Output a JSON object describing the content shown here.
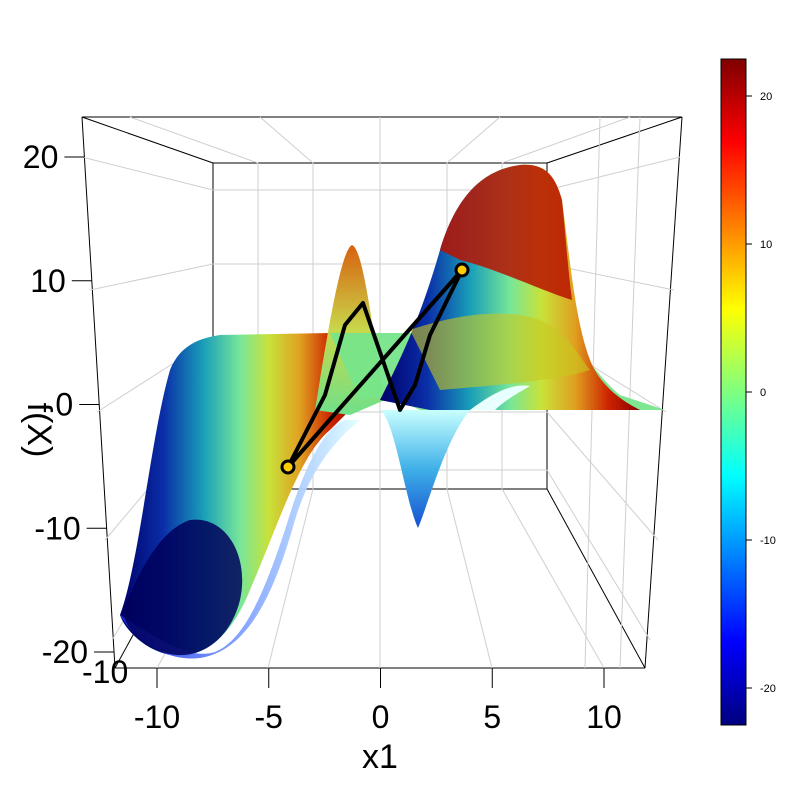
{
  "chart_data": {
    "type": "surface3d",
    "xlabel": "x1",
    "zlabel": "f(X)",
    "x_ticks": [
      "-10",
      "-5",
      "0",
      "5",
      "10"
    ],
    "x_tick_values": [
      -10,
      -5,
      0,
      5,
      10
    ],
    "z_ticks": [
      "20",
      "10",
      "0",
      "-10",
      "-20"
    ],
    "z_tick_values": [
      20,
      10,
      0,
      -10,
      -20
    ],
    "y_tick_visible": "-10",
    "xlim": [
      -12,
      12
    ],
    "zlim": [
      -22,
      23
    ],
    "colorbar": {
      "ticks": [
        "20",
        "10",
        "0",
        "-10",
        "-20"
      ],
      "tick_values": [
        20,
        10,
        0,
        -10,
        -20
      ],
      "range": [
        -22.5,
        22.5
      ],
      "colors": [
        "#00007f",
        "#0000ff",
        "#007fff",
        "#00ffff",
        "#7fff7f",
        "#ffff00",
        "#ff7f00",
        "#ff0000",
        "#7f0000"
      ]
    },
    "path": {
      "start": {
        "x1": -4.2,
        "f": -4.5
      },
      "end": {
        "x1": 3.5,
        "f": 11.5
      },
      "color": "#000000",
      "marker_fill": "#ffcc00"
    }
  }
}
